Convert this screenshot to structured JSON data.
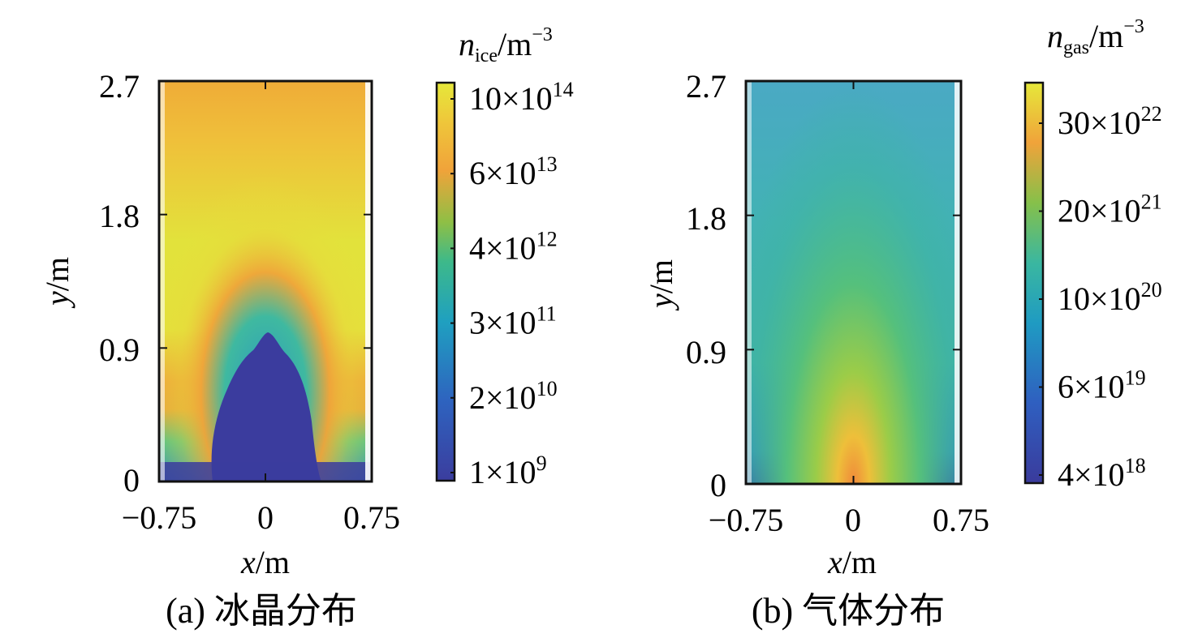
{
  "chart_data": [
    {
      "type": "heatmap",
      "panel": "a",
      "caption": "(a) 冰晶分布",
      "quantity": "n_ice",
      "xlabel_var": "x",
      "xlabel_unit": "/m",
      "ylabel_var": "y",
      "ylabel_unit": "/m",
      "xlim": [
        -0.75,
        0.75
      ],
      "ylim": [
        0,
        2.7
      ],
      "xticks": [
        "−0.75",
        "0",
        "0.75"
      ],
      "yticks": [
        "0",
        "0.9",
        "1.8",
        "2.7"
      ],
      "colorbar": {
        "title_var": "n",
        "title_sub": "ice",
        "title_unit": "/m",
        "title_exp": "−3",
        "ticks": [
          {
            "mantissa": "1×10",
            "exp": "9"
          },
          {
            "mantissa": "2×10",
            "exp": "10"
          },
          {
            "mantissa": "3×10",
            "exp": "11"
          },
          {
            "mantissa": "4×10",
            "exp": "12"
          },
          {
            "mantissa": "6×10",
            "exp": "13"
          },
          {
            "mantissa": "10×10",
            "exp": "14"
          }
        ]
      },
      "colormap": [
        "#3b3da0",
        "#2a78c4",
        "#20b0a8",
        "#5cc45a",
        "#d9b936",
        "#f2a33a",
        "#f4dc3a",
        "#e8e83a"
      ]
    },
    {
      "type": "heatmap",
      "panel": "b",
      "caption": "(b) 气体分布",
      "quantity": "n_gas",
      "xlabel_var": "x",
      "xlabel_unit": "/m",
      "ylabel_var": "y",
      "ylabel_unit": "/m",
      "xlim": [
        -0.75,
        0.75
      ],
      "ylim": [
        0,
        2.7
      ],
      "xticks": [
        "−0.75",
        "0",
        "0.75"
      ],
      "yticks": [
        "0",
        "0.9",
        "1.8",
        "2.7"
      ],
      "colorbar": {
        "title_var": "n",
        "title_sub": "gas",
        "title_unit": "/m",
        "title_exp": "−3",
        "ticks": [
          {
            "mantissa": "4×10",
            "exp": "18"
          },
          {
            "mantissa": "6×10",
            "exp": "19"
          },
          {
            "mantissa": "10×10",
            "exp": "20"
          },
          {
            "mantissa": "20×10",
            "exp": "21"
          },
          {
            "mantissa": "30×10",
            "exp": "22"
          }
        ]
      }
    }
  ]
}
